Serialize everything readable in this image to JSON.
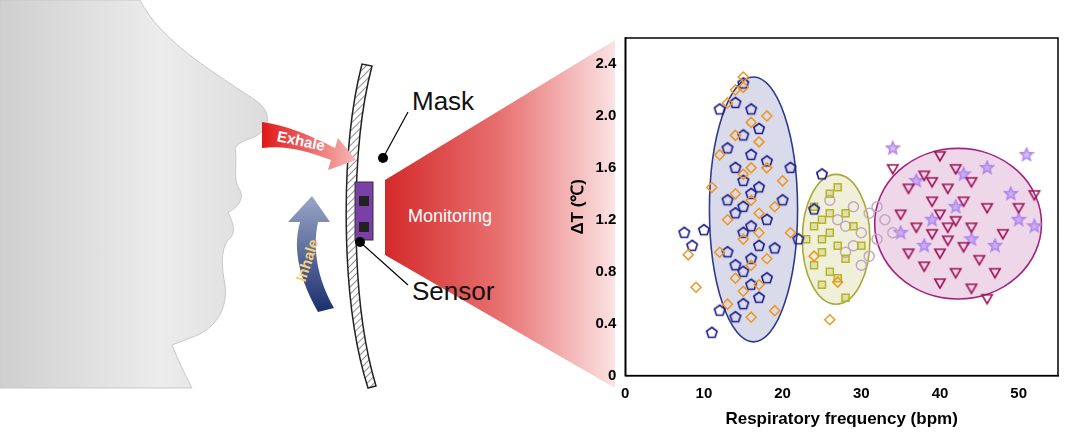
{
  "chart_data": {
    "type": "scatter",
    "x_label": "Respiratory frequency (bpm)",
    "y_label": "ΔT (℃)",
    "xlim": [
      0,
      55
    ],
    "xticks": [
      0,
      10,
      20,
      30,
      40,
      50
    ],
    "ylim": [
      0,
      2.6
    ],
    "yticks": [
      0,
      0.4,
      0.8,
      1.2,
      1.6,
      {
        "value": 2,
        "label": "2.0"
      },
      2.4
    ],
    "grid": false,
    "series": [
      {
        "color": "#f0961e",
        "marker": "diamond",
        "x": [
          14,
          15,
          13,
          16,
          17,
          12,
          18,
          15,
          14,
          16,
          19,
          13,
          17,
          15,
          12,
          18,
          16,
          14,
          17,
          15,
          13,
          19,
          16,
          8,
          9,
          20,
          21,
          11,
          16,
          14,
          18,
          26,
          27,
          24,
          15,
          17
        ],
        "values": [
          2.2,
          2.3,
          2.1,
          1.95,
          1.8,
          1.7,
          1.6,
          1.55,
          1.4,
          1.35,
          1.3,
          1.2,
          1.1,
          1.05,
          0.95,
          0.9,
          0.85,
          0.75,
          0.7,
          0.65,
          0.55,
          0.5,
          0.45,
          0.93,
          0.68,
          1.5,
          1.1,
          1.45,
          1.6,
          1.85,
          2.0,
          0.43,
          0.72,
          0.92,
          2.22,
          1.25
        ]
      },
      {
        "color": "#1c1c8c",
        "marker": "pentagon",
        "x": [
          15,
          14,
          16,
          17,
          15,
          13,
          16,
          18,
          14,
          15,
          17,
          16,
          13,
          15,
          14,
          18,
          16,
          15,
          17,
          13,
          16,
          14,
          15,
          18,
          16,
          17,
          15,
          12,
          14,
          11,
          7.5,
          8.5,
          10,
          20,
          21,
          22,
          24,
          25,
          19,
          12
        ],
        "values": [
          2.25,
          2.1,
          2.05,
          1.9,
          1.85,
          1.75,
          1.7,
          1.65,
          1.6,
          1.5,
          1.45,
          1.4,
          1.35,
          1.3,
          1.25,
          1.2,
          1.15,
          1.1,
          1.0,
          0.95,
          0.9,
          0.85,
          0.8,
          0.75,
          0.7,
          0.6,
          0.55,
          0.5,
          0.45,
          0.33,
          1.1,
          1.0,
          1.12,
          1.35,
          1.6,
          1.05,
          1.28,
          1.55,
          0.98,
          2.05
        ]
      },
      {
        "color": "#b5b52a",
        "marker": "square",
        "x": [
          24,
          25,
          26,
          27,
          25,
          26,
          28,
          24,
          27,
          25,
          29,
          26,
          28,
          23,
          27,
          25,
          26,
          28,
          30,
          24
        ],
        "values": [
          1.3,
          1.2,
          1.1,
          1.0,
          0.95,
          1.4,
          1.25,
          0.85,
          0.75,
          0.7,
          1.15,
          0.8,
          0.9,
          1.05,
          1.45,
          1.05,
          1.25,
          0.6,
          1.0,
          1.15
        ]
      },
      {
        "color": "#c4a6c4",
        "marker": "circle",
        "x": [
          27,
          29,
          30,
          31,
          32,
          28,
          30,
          33,
          26,
          29,
          31,
          34,
          28,
          32
        ],
        "values": [
          1.2,
          1.3,
          1.1,
          1.25,
          1.05,
          0.95,
          0.85,
          1.2,
          1.35,
          1.0,
          0.92,
          1.1,
          1.15,
          1.3
        ]
      },
      {
        "color": "#a0145a",
        "marker": "triangle_down",
        "x": [
          40,
          42,
          38,
          44,
          36,
          41,
          39,
          43,
          46,
          35,
          40,
          42,
          37,
          44,
          48,
          39,
          41,
          43,
          36,
          40,
          45,
          38,
          42,
          47,
          40,
          44,
          50,
          52,
          34,
          46,
          41,
          39
        ],
        "values": [
          1.7,
          1.6,
          1.55,
          1.5,
          1.45,
          1.45,
          1.35,
          1.35,
          1.3,
          1.25,
          1.25,
          1.2,
          1.15,
          1.15,
          1.1,
          1.1,
          1.05,
          1.0,
          0.95,
          0.95,
          0.9,
          0.85,
          0.8,
          0.8,
          0.72,
          0.68,
          1.3,
          1.4,
          1.6,
          0.6,
          1.15,
          1.5
        ]
      },
      {
        "color": "#b088f0",
        "marker": "star",
        "x": [
          34,
          37,
          39,
          42,
          44,
          46,
          49,
          51,
          50,
          52,
          35,
          47,
          43,
          38
        ],
        "values": [
          1.75,
          1.5,
          1.2,
          1.3,
          1.05,
          1.6,
          1.4,
          1.7,
          1.2,
          1.15,
          1.1,
          1.0,
          1.55,
          1.0
        ]
      }
    ],
    "ellipses": [
      {
        "color": "#2e3a8f",
        "center": [
          16.3,
          1.28
        ],
        "radii": [
          5.6,
          1.02
        ]
      },
      {
        "color": "#a9a934",
        "center": [
          26.8,
          1.05
        ],
        "radii": [
          4.3,
          0.5
        ]
      },
      {
        "color": "#a3237f",
        "center": [
          42.3,
          1.17
        ],
        "radii": [
          10.6,
          0.58
        ]
      }
    ]
  },
  "illustration": {
    "exhale": "Exhale",
    "inhale": "Inhale",
    "mask": "Mask",
    "sensor": "Sensor",
    "monitoring": "Monitoring"
  }
}
